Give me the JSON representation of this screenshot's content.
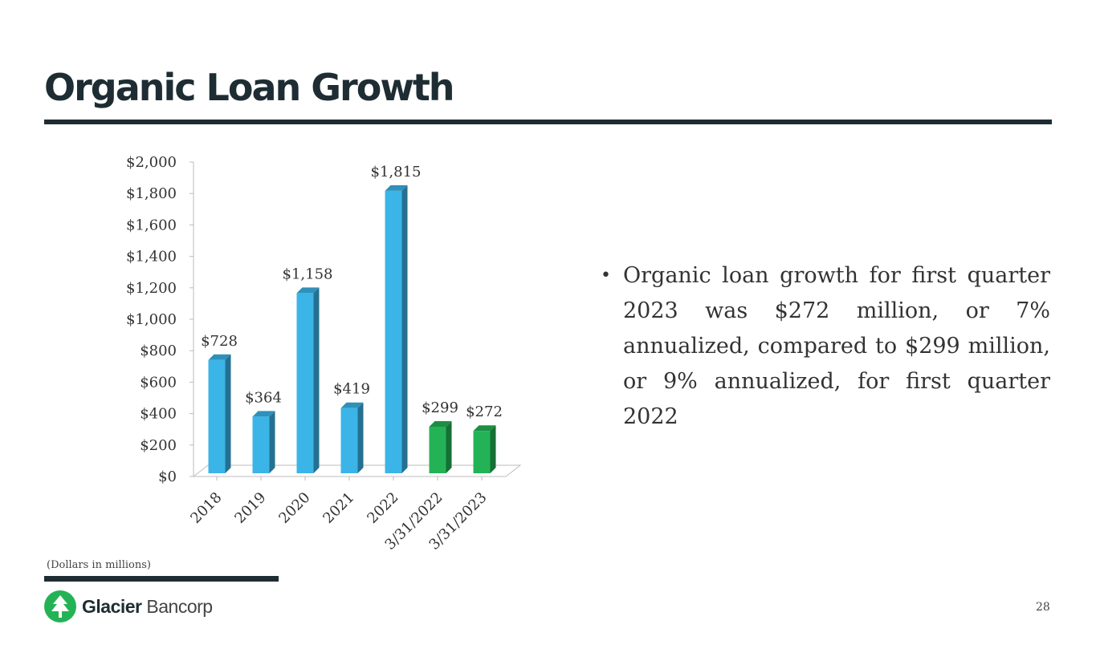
{
  "slide": {
    "title": "Organic Loan Growth",
    "bullet": "Organic loan growth for first quarter 2023 was $272 million, or 7% annualized,  compared to $299 million, or 9% annualized, for first quarter 2022",
    "footnote": "(Dollars in millions)",
    "logo_bold": "Glacier",
    "logo_light": "Bancorp",
    "page_number": "28"
  },
  "colors": {
    "title": "#1e2d33",
    "bar_annual": "#3bb4e8",
    "bar_quarter": "#23b356",
    "logo_green": "#23b356"
  },
  "chart_data": {
    "type": "bar",
    "categories": [
      "2018",
      "2019",
      "2020",
      "2021",
      "2022",
      "3/31/2022",
      "3/31/2023"
    ],
    "values": [
      728,
      364,
      1158,
      419,
      1815,
      299,
      272
    ],
    "value_labels": [
      "$728",
      "$364",
      "$1,158",
      "$419",
      "$1,815",
      "$299",
      "$272"
    ],
    "bar_colors": [
      "#3bb4e8",
      "#3bb4e8",
      "#3bb4e8",
      "#3bb4e8",
      "#3bb4e8",
      "#23b356",
      "#23b356"
    ],
    "yticks": [
      0,
      200,
      400,
      600,
      800,
      1000,
      1200,
      1400,
      1600,
      1800,
      2000
    ],
    "ytick_labels": [
      "$0",
      "$200",
      "$400",
      "$600",
      "$800",
      "$1,000",
      "$1,200",
      "$1,400",
      "$1,600",
      "$1,800",
      "$2,000"
    ],
    "ylim": [
      0,
      2000
    ],
    "grid": false,
    "style": "3d"
  }
}
